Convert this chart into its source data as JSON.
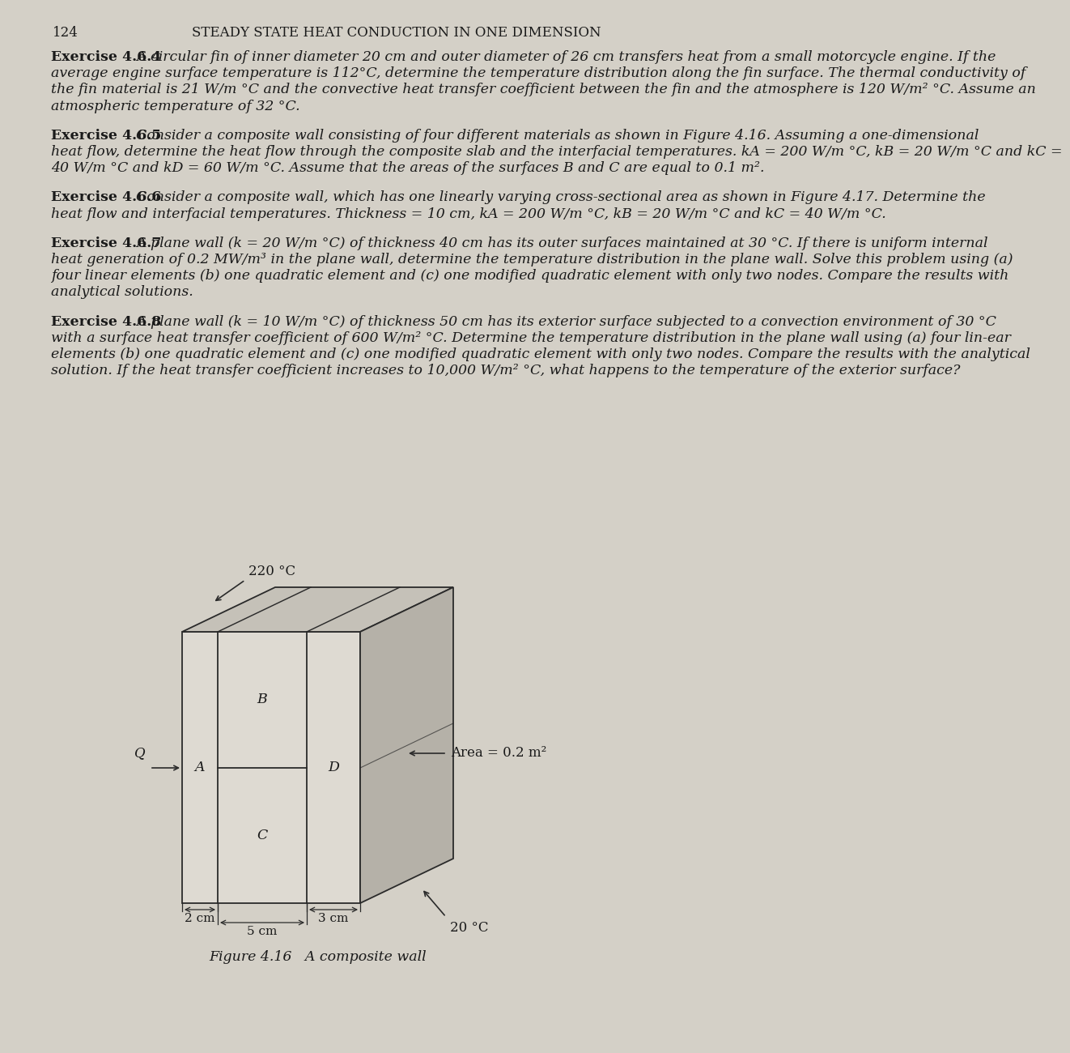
{
  "page_number": "124",
  "chapter_title": "STEADY STATE HEAT CONDUCTION IN ONE DIMENSION",
  "background_color": "#d4d0c7",
  "text_color": "#1a1a1a",
  "exercises": [
    {
      "label": "Exercise 4.6.4",
      "body": " A circular fin of inner diameter 20 cm and outer diameter of 26 cm transfers heat from a small motorcycle engine. If the average engine surface temperature is 112°C, determine the temperature distribution along the fin surface. The thermal conductivity of the fin material is 21 W/m °C and the convective heat transfer coefficient between the fin and the atmosphere is 120 W/m² °C. Assume an atmospheric temperature of 32 °C."
    },
    {
      "label": "Exercise 4.6.5",
      "body": " Consider a composite wall consisting of four different materials as shown in Figure 4.16. Assuming a one-dimensional heat flow, determine the heat flow through the composite slab and the interfacial temperatures. kA = 200 W/m °C, kB = 20 W/m °C and kC = 40 W/m °C and kD = 60 W/m °C. Assume that the areas of the surfaces B and C are equal to 0.1 m²."
    },
    {
      "label": "Exercise 4.6.6",
      "body": " Consider a composite wall, which has one linearly varying cross-sectional area as shown in Figure 4.17. Determine the heat flow and interfacial temperatures. Thickness = 10 cm, kA = 200 W/m °C, kB = 20 W/m °C and kC = 40 W/m °C."
    },
    {
      "label": "Exercise 4.6.7",
      "body": " A plane wall (k = 20 W/m °C) of thickness 40 cm has its outer surfaces maintained at 30 °C. If there is uniform internal heat generation of 0.2 MW/m³ in the plane wall, determine the temperature distribution in the plane wall. Solve this problem using (a) four linear elements (b) one quadratic element and (c) one modified quadratic element with only two nodes. Compare the results with analytical solutions."
    },
    {
      "label": "Exercise 4.6.8",
      "body": " A plane wall (k = 10 W/m °C) of thickness 50 cm has its exterior surface subjected to a convection environment of 30 °C with a surface heat transfer coefficient of 600 W/m² °C. Determine the temperature distribution in the plane wall using (a) four lin-ear elements (b) one quadratic element and (c) one modified quadratic element with only two nodes. Compare the results with the analytical solution. If the heat transfer coefficient increases to 10,000 W/m² °C, what happens to the temperature of the exterior surface?"
    }
  ],
  "figure_caption": "Figure 4.16   A composite wall",
  "fig": {
    "temp_top": "220 °C",
    "temp_bottom": "20 °C",
    "area_label": "Area = 0.2 m²",
    "dim1": "2 cm",
    "dim2": "5 cm",
    "dim3": "3 cm",
    "node_Q": "Q",
    "node_A": "A",
    "node_B": "B",
    "node_C": "C",
    "node_D": "D",
    "face_color": "#dedad2",
    "top_color": "#c5c1b8",
    "side_color": "#b5b1a8",
    "edge_color": "#2a2a2a"
  }
}
